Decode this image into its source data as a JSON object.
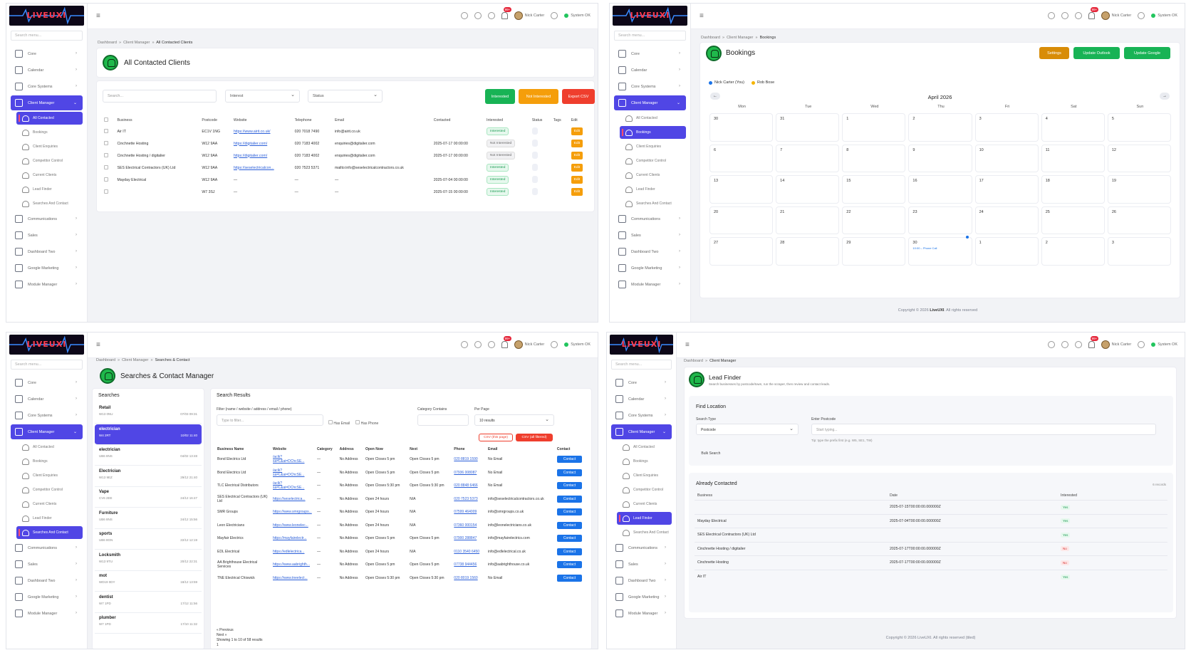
{
  "app": {
    "logo_text": "LIVEUXI"
  },
  "topbar": {
    "user": "Nick Carter",
    "status": "System OK",
    "notif_badge": "99+"
  },
  "menu": {
    "search_placeholder": "Search menu...",
    "core": "Core",
    "calendar": "Calendar",
    "core_systems": "Core Systems",
    "client_manager": "Client Manager",
    "sub": [
      "All Contacted",
      "Bookings",
      "Client Enquiries",
      "Competitor Control",
      "Current Clients",
      "Lead Finder",
      "Searches And Contact"
    ],
    "communications": "Communications",
    "sales": "Sales",
    "dashboard_two": "Dashboard Two",
    "google_marketing": "Google Marketing",
    "module_manager": "Module Manager"
  },
  "crumbs": {
    "dashboard": "Dashboard",
    "client_manager": "Client Manager",
    "all_contacted": "All Contacted Clients",
    "bookings": "Bookings",
    "searches": "Searches & Contact"
  },
  "contacted": {
    "title": "All Contacted Clients",
    "search_placeholder": "Search...",
    "interest_filter": "Interest",
    "status_filter": "Status",
    "btn_interested": "Interested",
    "btn_not_interested": "Not Interested",
    "btn_export": "Export CSV",
    "headers": [
      "Business",
      "Postcode",
      "Website",
      "Telephone",
      "Email",
      "Contacted",
      "Interested",
      "Status",
      "Tags",
      "Edit"
    ],
    "edit_label": "Edit",
    "rows": [
      {
        "business": "Air IT",
        "postcode": "EC1V 1NG",
        "website": "https://www.airit.co.uk/",
        "tel": "020 7018 7490",
        "email": "info@airit.co.uk",
        "contacted": "",
        "interest": "Interested",
        "pos": true
      },
      {
        "business": "Cinchnette Hosting",
        "postcode": "W12 9AA",
        "website": "https://digitalier.com/",
        "tel": "020 7183 4002",
        "email": "enquiries@digitalier.com",
        "contacted": "2025-07-17 00:00:00",
        "interest": "Not Interested",
        "pos": false
      },
      {
        "business": "Cinchnette Hosting / digitalier",
        "postcode": "W12 9AA",
        "website": "https://digitalier.com/",
        "tel": "020 7183 4002",
        "email": "enquiries@digitalier.com",
        "contacted": "2025-07-17 00:00:00",
        "interest": "Not Interested",
        "pos": false
      },
      {
        "business": "SES Electrical Contractors (UK) Ltd",
        "postcode": "W12 9AA",
        "website": "https://seselectricalcon...",
        "tel": "020 7523 5371",
        "email": "mailto:info@seselectricalcontractors.co.uk",
        "contacted": "",
        "interest": "Interested",
        "pos": true
      },
      {
        "business": "Mayday Electrical",
        "postcode": "W12 9AA",
        "website": "—",
        "tel": "—",
        "email": "—",
        "contacted": "2025-07-04 00:00:00",
        "interest": "Interested",
        "pos": true
      },
      {
        "business": "",
        "postcode": "W7 3SJ",
        "website": "—",
        "tel": "—",
        "email": "—",
        "contacted": "2025-07-15 00:00:00",
        "interest": "Interested",
        "pos": true
      }
    ]
  },
  "bookings": {
    "title": "Bookings",
    "btn_settings": "Settings",
    "btn_outlook": "Update Outlook",
    "btn_google": "Update Google",
    "legend": [
      {
        "name": "Nick Carter (You)",
        "color": "#1a73e8"
      },
      {
        "name": "Rob Bose",
        "color": "#f5b400"
      }
    ],
    "month": "April 2026",
    "prev": "←",
    "next": "→",
    "days": [
      "Mon",
      "Tue",
      "Wed",
      "Thu",
      "Fri",
      "Sat",
      "Sun"
    ],
    "weeks": [
      [
        "30",
        "31",
        "1",
        "2",
        "3",
        "4",
        "5"
      ],
      [
        "6",
        "7",
        "8",
        "9",
        "10",
        "11",
        "12"
      ],
      [
        "13",
        "14",
        "15",
        "16",
        "17",
        "18",
        "19"
      ],
      [
        "20",
        "21",
        "22",
        "23",
        "24",
        "25",
        "26"
      ],
      [
        "27",
        "28",
        "29",
        "30",
        "1",
        "2",
        "3"
      ]
    ],
    "event": "10:00 – Phone Call",
    "footer_pre": "Copyright © 2026",
    "footer_brand": "LiveUXI",
    "footer_post": ". All rights reserved"
  },
  "searches": {
    "title": "Searches & Contact Manager",
    "searches_header": "Searches",
    "list": [
      {
        "term": "Retail",
        "pc": "W13 0NU",
        "date": "07/03 09:31"
      },
      {
        "term": "electrician",
        "pc": "W4 2RT",
        "date": "10/02 11:40"
      },
      {
        "term": "electrician",
        "pc": "UB6 8NS",
        "date": "04/02 13:48"
      },
      {
        "term": "Electrician",
        "pc": "W13 9EZ",
        "date": "29/12 21:40"
      },
      {
        "term": "Vape",
        "pc": "CV6 2EE",
        "date": "24/12 16:47"
      },
      {
        "term": "Furniture",
        "pc": "UB6 8NS",
        "date": "24/12 15:56"
      },
      {
        "term": "sports",
        "pc": "UB6 8GN",
        "date": "22/12 12:19"
      },
      {
        "term": "Locksmith",
        "pc": "W13 9TU",
        "date": "20/12 22:31"
      },
      {
        "term": "mot",
        "pc": "WD19 0DY",
        "date": "18/12 13:59"
      },
      {
        "term": "dentist",
        "pc": "W7 1PD",
        "date": "17/12 11:56"
      },
      {
        "term": "plumber",
        "pc": "W7 1PD",
        "date": "17/10 11:32"
      }
    ],
    "results_header": "Search Results",
    "filter_label": "Filter (name / website / address / email / phone)",
    "filter_placeholder": "Type to filter...",
    "has_email": "Has Email",
    "has_phone": "Has Phone",
    "category_label": "Category Contains",
    "per_page_label": "Per Page",
    "per_page_value": "10 results",
    "csv_page": "CSV (this page)",
    "csv_all": "CSV (all filtered)",
    "headers": [
      "Business Name",
      "Website",
      "Category",
      "Address",
      "Open Now",
      "Next",
      "Phone",
      "Email",
      "Contact"
    ],
    "contact_label": "Contact",
    "rows": [
      {
        "name": "Bond Electrics Ltd",
        "web": "/aclk?sa=L&ai=DChcSE...",
        "cat": "—",
        "addr": "No Address",
        "open": "Open Closes 5 pm",
        "next": "Open Closes 5 pm",
        "phone": "020 8819 1590",
        "email": "No Email"
      },
      {
        "name": "Bond Electrics Ltd",
        "web": "/aclk?sa=L&ai=DChcSE...",
        "cat": "—",
        "addr": "No Address",
        "open": "Open Closes 5 pm",
        "next": "Open Closes 5 pm",
        "phone": "07936 008087",
        "email": "No Email"
      },
      {
        "name": "TLC Electrical Distributors",
        "web": "/aclk?sa=L&ai=DChcSE...",
        "cat": "—",
        "addr": "No Address",
        "open": "Open Closes 5:30 pm",
        "next": "Open Closes 5:30 pm",
        "phone": "020 8848 6466",
        "email": "No Email"
      },
      {
        "name": "SES Electrical Contractors (UK) Ltd",
        "web": "https://seselectrica...",
        "cat": "—",
        "addr": "No Address",
        "open": "Open 24 hours",
        "next": "N/A",
        "phone": "020 7523 5373",
        "email": "info@seselectricalcontractors.co.uk"
      },
      {
        "name": "SMR Groups",
        "web": "https://www.smrgroups...",
        "cat": "—",
        "addr": "No Address",
        "open": "Open 24 hours",
        "next": "N/A",
        "phone": "07599 464009",
        "email": "info@smrgroups.co.uk"
      },
      {
        "name": "Leon Electricians",
        "web": "https://www.leonelec...",
        "cat": "—",
        "addr": "No Address",
        "open": "Open 24 hours",
        "next": "N/A",
        "phone": "07360 000154",
        "email": "info@leonelectricians.co.uk"
      },
      {
        "name": "Mayfair Electrics",
        "web": "https://mayfairelectr...",
        "cat": "—",
        "addr": "No Address",
        "open": "Open Closes 5 pm",
        "next": "Open Closes 5 pm",
        "phone": "07900 288847",
        "email": "info@mayfairelectrics.com"
      },
      {
        "name": "EDL Electrical",
        "web": "https://edlelectrica...",
        "cat": "—",
        "addr": "No Address",
        "open": "Open 24 hours",
        "next": "N/A",
        "phone": "0110 3540 6450",
        "email": "info@edlelectrical.co.uk"
      },
      {
        "name": "AA Brighthouse Electrical Services",
        "web": "https://www.aabrighth...",
        "cat": "—",
        "addr": "No Address",
        "open": "Open Closes 5 pm",
        "next": "Open Closes 5 pm",
        "phone": "07738 944456",
        "email": "info@aabrighthouse.co.uk"
      },
      {
        "name": "TNE Electrical Chiswick",
        "web": "https://www.tneelect...",
        "cat": "—",
        "addr": "No Address",
        "open": "Open Closes 5:30 pm",
        "next": "Open Closes 5:30 pm",
        "phone": "020 8019 1560",
        "email": "No Email"
      }
    ],
    "prev": "« Previous",
    "next": "Next »",
    "showing": "Showing 1 to 10 of 58 results",
    "page": "1"
  },
  "lead": {
    "title": "Lead Finder",
    "subtitle": "Search businesses by postcode/town, run the scraper, then review and contact leads.",
    "find_header": "Find Location",
    "search_type_label": "Search Type",
    "search_type_value": "Postcode",
    "postcode_label": "Enter Postcode",
    "postcode_placeholder": "Start typing...",
    "tip": "Tip: type the prefix first (e.g. W5, SE1, TW)",
    "bulk": "Bulk Search",
    "already_header": "Already Contacted",
    "records": "6 records",
    "headers": [
      "Business",
      "Date",
      "Interested"
    ],
    "rows": [
      {
        "business": "",
        "date": "2025-07-15T00:00:00.000000Z",
        "interested": "Yes",
        "yes": true
      },
      {
        "business": "Mayday Electrical",
        "date": "2025-07-04T00:00:00.000000Z",
        "interested": "Yes",
        "yes": true
      },
      {
        "business": "SES Electrical Contractors (UK) Ltd",
        "date": "",
        "interested": "Yes",
        "yes": true
      },
      {
        "business": "Cinchnette Hosting / digitalier",
        "date": "2025-07-17T00:00:00.000000Z",
        "interested": "No",
        "yes": false
      },
      {
        "business": "Cinchnette Hosting",
        "date": "2025-07-17T00:00:00.000000Z",
        "interested": "No",
        "yes": false
      },
      {
        "business": "Air IT",
        "date": "",
        "interested": "Yes",
        "yes": true
      }
    ],
    "footer": "Copyright © 2026 LiveUXI. All rights reserved (tiled)"
  },
  "colors": {
    "accent": "#5046e5",
    "green": "#18b355",
    "orange": "#f59e0b",
    "red": "#ef3e2d",
    "blue": "#1a73e8"
  }
}
